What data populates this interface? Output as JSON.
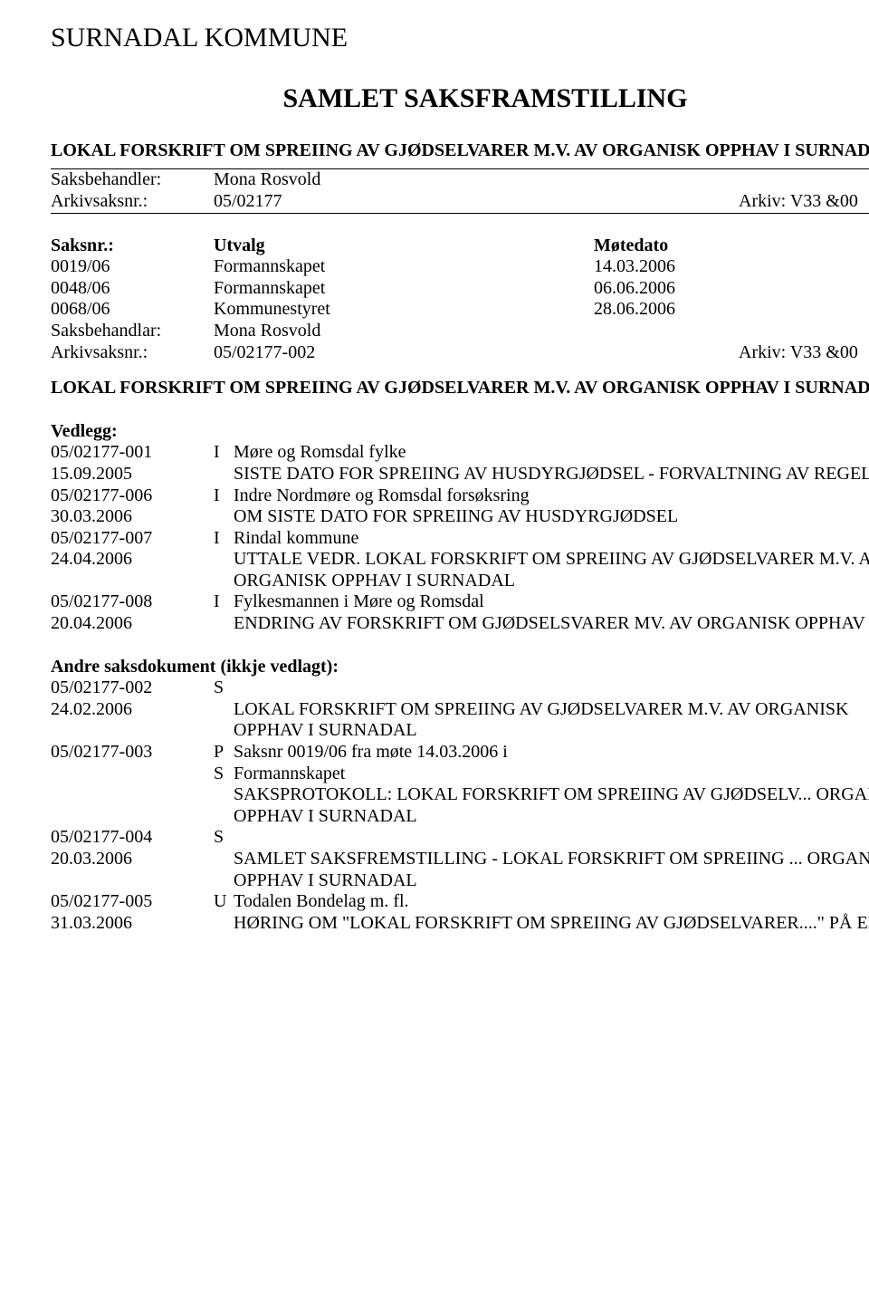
{
  "org": "SURNADAL KOMMUNE",
  "title": "SAMLET SAKSFRAMSTILLING",
  "subtitle": "LOKAL FORSKRIFT OM SPREIING AV GJØDSELVARER M.V. AV ORGANISK OPPHAV I SURNADAL",
  "handler_row": {
    "label": "Saksbehandler:",
    "name": "Mona Rosvold"
  },
  "casenr_row": {
    "label": "Arkivsaksnr.:",
    "value": "05/02177",
    "archive": "Arkiv: V33 &00"
  },
  "meetings": {
    "header": {
      "c1": "Saksnr.:",
      "c2": "Utvalg",
      "c3": "Møtedato"
    },
    "rows": [
      {
        "c1": "0019/06",
        "c2": "Formannskapet",
        "c3": "14.03.2006"
      },
      {
        "c1": "0048/06",
        "c2": "Formannskapet",
        "c3": "06.06.2006"
      },
      {
        "c1": "0068/06",
        "c2": "Kommunestyret",
        "c3": "28.06.2006"
      }
    ]
  },
  "handlar_row": {
    "label": "Saksbehandlar:",
    "name": "Mona Rosvold"
  },
  "arkivs_row": {
    "label": "Arkivsaksnr.:",
    "value": "05/02177-002",
    "archive": "Arkiv: V33 &00"
  },
  "repeat_subtitle": "LOKAL FORSKRIFT OM SPREIING AV GJØDSELVARER M.V. AV ORGANISK OPPHAV I SURNADAL",
  "vedlegg_heading": "Vedlegg:",
  "vedlegg": [
    {
      "c1": "05/02177-001",
      "c2": "I",
      "c3": "Møre og Romsdal fylke"
    },
    {
      "c1": "15.09.2005",
      "c2": "",
      "c3": "SISTE DATO FOR SPREIING AV HUSDYRGJØDSEL - FORVALTNING AV REGELVERK"
    },
    {
      "c1": "05/02177-006",
      "c2": "I",
      "c3": "Indre Nordmøre og Romsdal forsøksring"
    },
    {
      "c1": "30.03.2006",
      "c2": "",
      "c3": "OM SISTE DATO FOR SPREIING AV HUSDYRGJØDSEL"
    },
    {
      "c1": "05/02177-007",
      "c2": "I",
      "c3": "Rindal kommune"
    },
    {
      "c1": "24.04.2006",
      "c2": "",
      "c3": "UTTALE VEDR. LOKAL FORSKRIFT OM SPREIING AV GJØDSELVARER M.V. AV  ORGANISK OPPHAV I SURNADAL"
    },
    {
      "c1": "05/02177-008",
      "c2": "I",
      "c3": "Fylkesmannen i Møre og Romsdal"
    },
    {
      "c1": "20.04.2006",
      "c2": "",
      "c3": "ENDRING AV FORSKRIFT OM GJØDSELSVARER MV. AV ORGANISK OPPHAV"
    }
  ],
  "andre_heading": "Andre saksdokument (ikkje vedlagt):",
  "andre": [
    {
      "c1": "05/02177-002",
      "c2": "S",
      "c3": ""
    },
    {
      "c1": "24.02.2006",
      "c2": "",
      "c3": "LOKAL FORSKRIFT OM SPREIING AV GJØDSELVARER M.V. AV ORGANISK  OPPHAV I SURNADAL"
    },
    {
      "c1": "05/02177-003",
      "c2": "P",
      "c3": "Saksnr 0019/06 fra møte 14.03.2006 i"
    },
    {
      "c1": "",
      "c2": "S",
      "c3": "Formannskapet"
    },
    {
      "c1": "",
      "c2": "",
      "c3": "SAKSPROTOKOLL: LOKAL FORSKRIFT OM SPREIING AV GJØDSELV... ORGANISK  OPPHAV I SURNADAL"
    },
    {
      "c1": "05/02177-004",
      "c2": "S",
      "c3": ""
    },
    {
      "c1": "20.03.2006",
      "c2": "",
      "c3": "SAMLET SAKSFREMSTILLING - LOKAL FORSKRIFT OM SPREIING ... ORGANISK  OPPHAV I SURNADAL"
    },
    {
      "c1": "05/02177-005",
      "c2": "U",
      "c3": "Todalen Bondelag m. fl."
    },
    {
      "c1": "31.03.2006",
      "c2": "",
      "c3": "HØRING OM \"LOKAL FORSKRIFT OM SPREIING AV GJØDSELVARER....\" PÅ ENG"
    }
  ]
}
